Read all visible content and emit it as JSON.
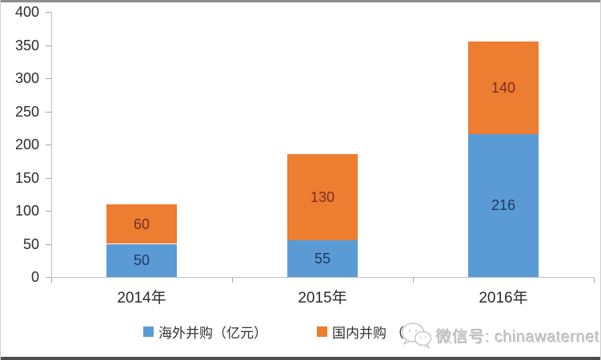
{
  "chart_data": {
    "type": "bar",
    "stacked": true,
    "title": "",
    "xlabel": "",
    "ylabel": "",
    "categories": [
      "2014年",
      "2015年",
      "2016年"
    ],
    "series": [
      {
        "name": "海外并购（亿元）",
        "values": [
          50,
          55,
          216
        ],
        "color": "#5b9bd5",
        "label_color": "#1f3864"
      },
      {
        "name": "国内并购",
        "values": [
          60,
          130,
          140
        ],
        "color": "#ed7d31",
        "label_color": "#7c2d21"
      }
    ],
    "totals": [
      110,
      185,
      356
    ],
    "ylim": [
      0,
      400
    ],
    "yticks": [
      0,
      50,
      100,
      150,
      200,
      250,
      300,
      350,
      400
    ],
    "grid": false,
    "legend_position": "bottom",
    "axis_color": "#bfbfbf",
    "tick_label_color": "#2b2b2b"
  },
  "legend": {
    "items": [
      {
        "label": "海外并购（亿元）",
        "color": "#5b9bd5"
      },
      {
        "label": "国内并购 （",
        "color": "#ed7d31"
      }
    ]
  },
  "watermark": {
    "icon": "wechat-icon",
    "text": "微信号: chinawaternet",
    "color": "#cccccc"
  }
}
